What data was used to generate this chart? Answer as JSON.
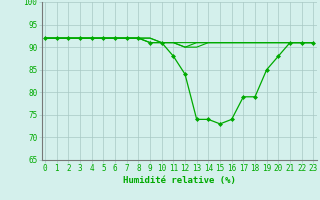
{
  "title": "",
  "xlabel": "Humidité relative (%)",
  "ylabel": "",
  "bg_color": "#d4f0ec",
  "grid_color": "#a8c8c4",
  "line_color": "#00aa00",
  "marker_color": "#00aa00",
  "xlim": [
    0,
    23
  ],
  "ylim": [
    65,
    100
  ],
  "yticks": [
    65,
    70,
    75,
    80,
    85,
    90,
    95,
    100
  ],
  "xticks": [
    0,
    1,
    2,
    3,
    4,
    5,
    6,
    7,
    8,
    9,
    10,
    11,
    12,
    13,
    14,
    15,
    16,
    17,
    18,
    19,
    20,
    21,
    22,
    23
  ],
  "series": [
    [
      92,
      92,
      92,
      92,
      92,
      92,
      92,
      92,
      92,
      91,
      91,
      91,
      91,
      91,
      91,
      91,
      91,
      91,
      91,
      91,
      91,
      91,
      91,
      91
    ],
    [
      92,
      92,
      92,
      92,
      92,
      92,
      92,
      92,
      92,
      91,
      91,
      88,
      84,
      74,
      74,
      73,
      74,
      79,
      79,
      85,
      88,
      91,
      91,
      91
    ],
    [
      92,
      92,
      92,
      92,
      92,
      92,
      92,
      92,
      92,
      92,
      91,
      91,
      90,
      90,
      91,
      91,
      91,
      91,
      91,
      91,
      91,
      91,
      91,
      91
    ],
    [
      92,
      92,
      92,
      92,
      92,
      92,
      92,
      92,
      92,
      92,
      91,
      91,
      90,
      91,
      91,
      91,
      91,
      91,
      91,
      91,
      91,
      91,
      91,
      91
    ]
  ],
  "marker_series": 1,
  "font_color": "#00aa00",
  "font_family": "monospace",
  "tick_fontsize": 5.5,
  "xlabel_fontsize": 6.5
}
